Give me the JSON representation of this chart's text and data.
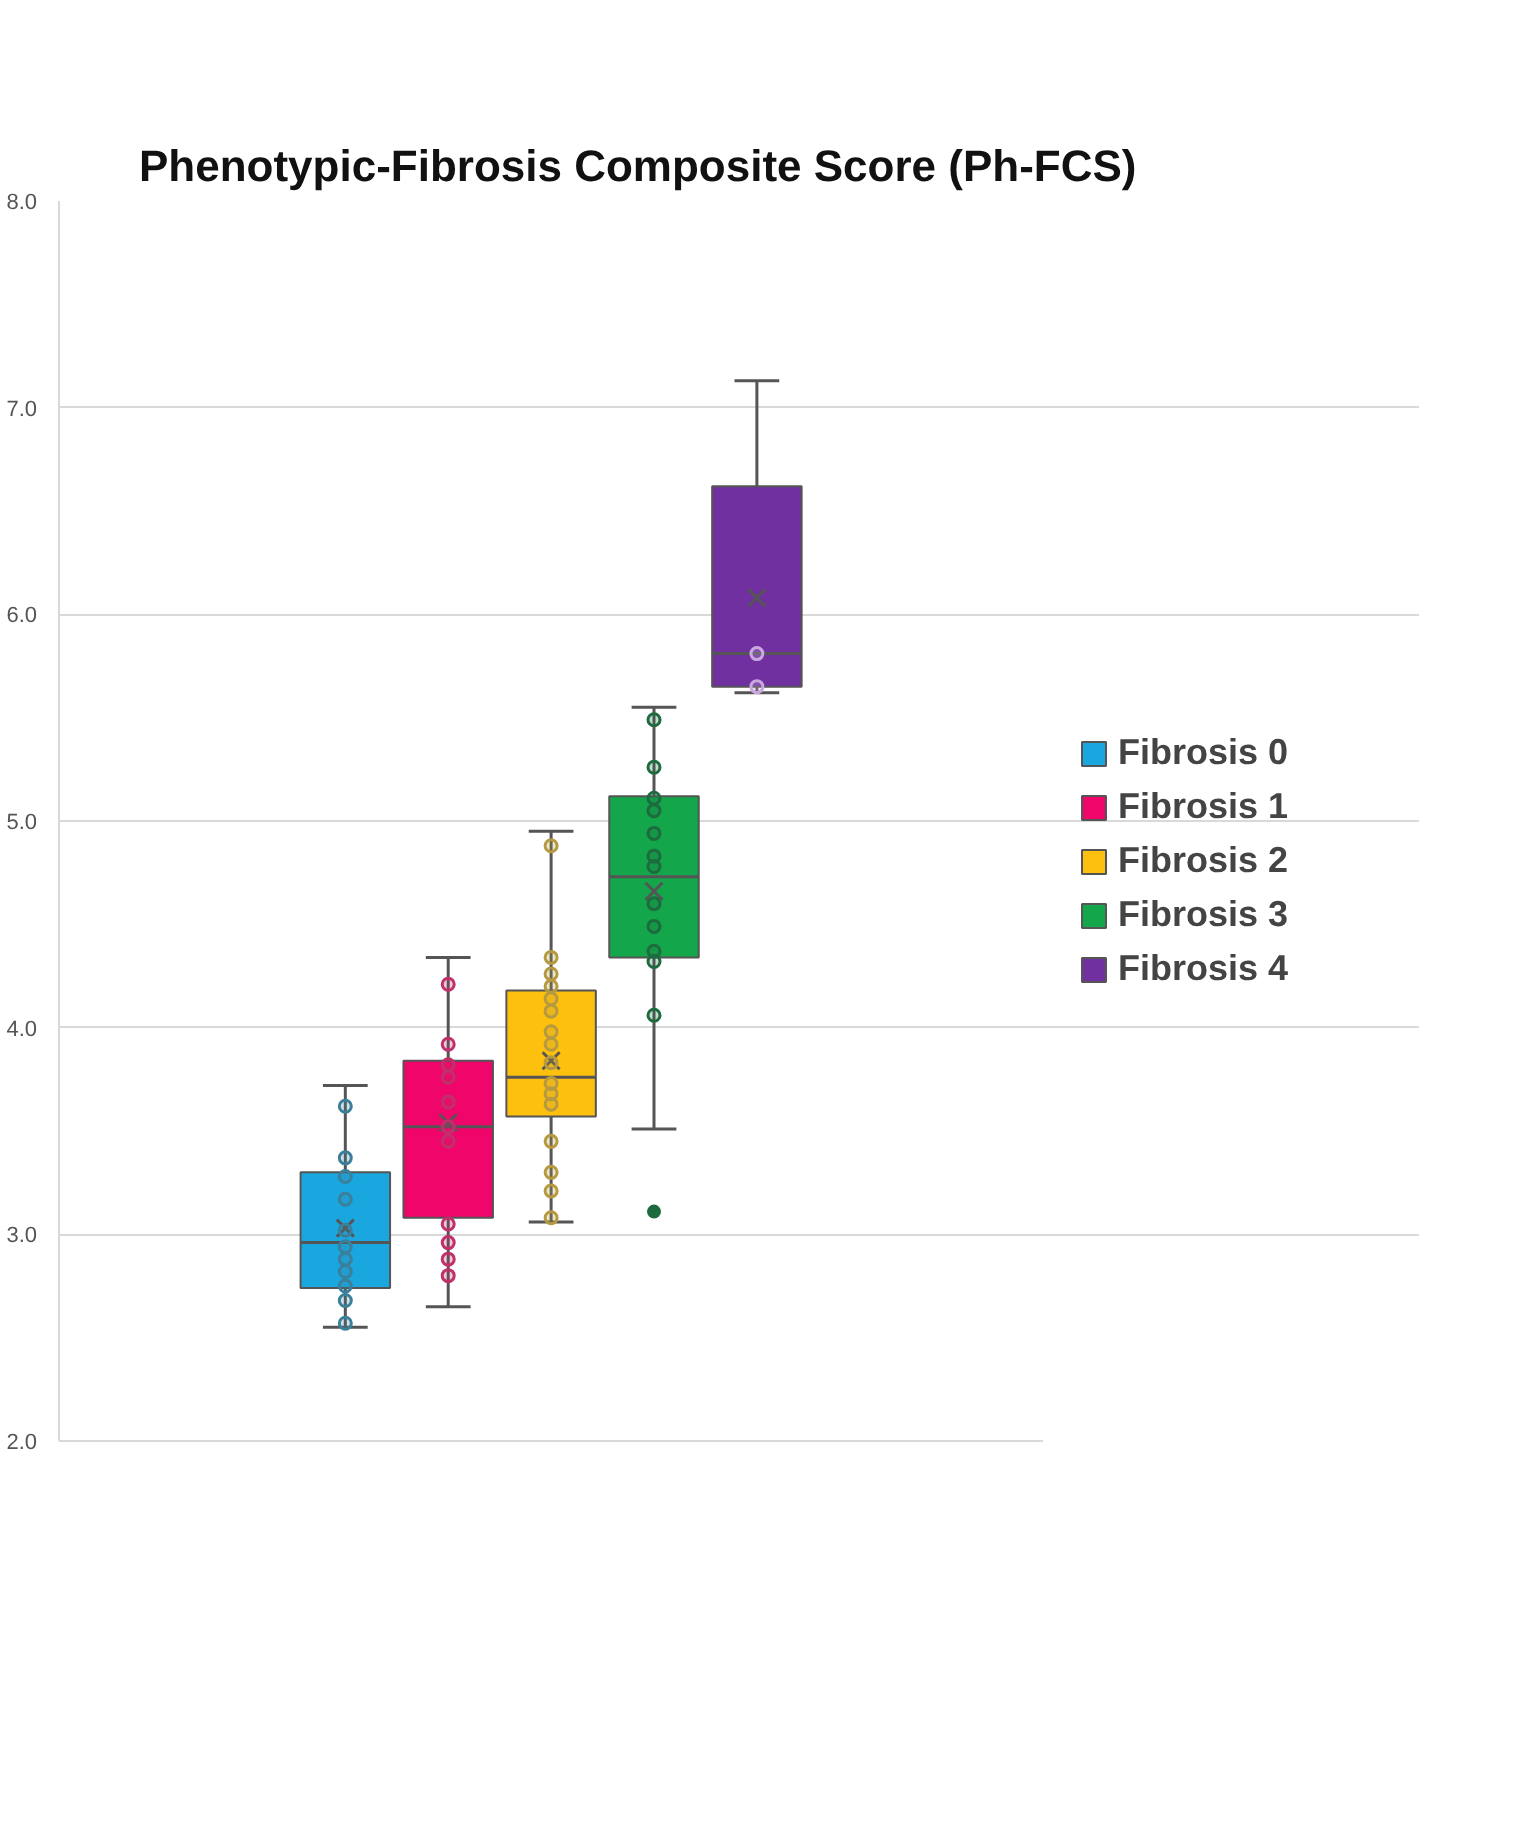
{
  "chart_data": {
    "type": "box",
    "title": "Phenotypic-Fibrosis Composite Score (Ph-FCS)",
    "categories": [
      null
    ],
    "ylim": [
      2,
      8
    ],
    "yticks": [
      {
        "value": 2,
        "label": "2.0"
      },
      {
        "value": 3,
        "label": "3.0"
      },
      {
        "value": 4,
        "label": "4.0"
      },
      {
        "value": 5,
        "label": "5.0"
      },
      {
        "value": 6,
        "label": "6.0"
      },
      {
        "value": 7,
        "label": "7.0"
      },
      {
        "value": 8,
        "label": "8.0"
      }
    ],
    "grid": "y",
    "legend": "right",
    "tick_labels": "y",
    "marker": "circle",
    "series": [
      {
        "name": "Fibrosis 0",
        "color": "#1aa7e0",
        "boxes": [
          {
            "low": 2.55,
            "q1": 2.74,
            "median": 2.96,
            "q3": 3.3,
            "high": 3.72,
            "mean": 3.03
          }
        ]
      },
      {
        "name": "Fibrosis 1",
        "color": "#f0056a",
        "boxes": [
          {
            "low": 2.65,
            "q1": 3.08,
            "median": 3.52,
            "q3": 3.84,
            "high": 4.34,
            "mean": 3.54
          }
        ]
      },
      {
        "name": "Fibrosis 2",
        "color": "#fdc00f",
        "boxes": [
          {
            "low": 3.06,
            "q1": 3.57,
            "median": 3.76,
            "q3": 4.18,
            "high": 4.95,
            "mean": 3.84
          }
        ]
      },
      {
        "name": "Fibrosis 3",
        "color": "#13a64a",
        "boxes": [
          {
            "low": 3.51,
            "q1": 4.34,
            "median": 4.73,
            "q3": 5.12,
            "high": 5.55,
            "mean": 4.66,
            "outliers": [
              3.11
            ]
          }
        ]
      },
      {
        "name": "Fibrosis 4",
        "color": "#7030a0",
        "boxes": [
          {
            "low": 5.62,
            "q1": 5.65,
            "median": 5.81,
            "q3": 6.62,
            "high": 7.13,
            "mean": 6.08
          }
        ]
      },
      {
        "type": "scatter",
        "color": "#3b7f9b",
        "x": [
          null,
          null,
          null,
          null,
          null,
          null,
          null,
          null,
          null,
          null,
          null
        ],
        "values": [
          3.62,
          3.37,
          3.28,
          3.17,
          3.02,
          2.94,
          2.88,
          2.82,
          2.75,
          2.68,
          2.57
        ]
      },
      {
        "type": "scatter",
        "color": "#c0306a",
        "x": [
          null,
          null,
          null,
          null,
          null,
          null,
          null,
          null,
          null,
          null,
          null
        ],
        "values": [
          4.21,
          3.92,
          3.82,
          3.76,
          3.64,
          3.52,
          3.45,
          3.05,
          2.96,
          2.88,
          2.8
        ]
      },
      {
        "type": "scatter",
        "color": "#b79a40",
        "x": [
          null,
          null,
          null,
          null,
          null,
          null,
          null,
          null,
          null,
          null,
          null,
          null,
          null,
          null,
          null,
          null
        ],
        "values": [
          4.88,
          4.34,
          4.26,
          4.2,
          4.14,
          4.08,
          3.98,
          3.92,
          3.83,
          3.73,
          3.68,
          3.63,
          3.45,
          3.3,
          3.21,
          3.08
        ]
      },
      {
        "type": "scatter",
        "color": "#1d6b3e",
        "x": [
          null,
          null,
          null,
          null,
          null,
          null,
          null,
          null,
          null,
          null,
          null,
          null
        ],
        "values": [
          5.49,
          5.26,
          5.11,
          5.05,
          4.94,
          4.83,
          4.78,
          4.6,
          4.49,
          4.37,
          4.32,
          4.06
        ]
      },
      {
        "type": "scatter",
        "color": "#c9a8e0",
        "x": [
          null,
          null
        ],
        "values": [
          5.81,
          5.65
        ]
      }
    ]
  }
}
